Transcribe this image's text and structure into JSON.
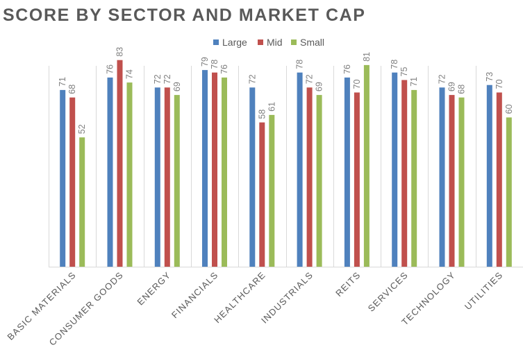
{
  "chart_data": {
    "type": "bar",
    "title": "SCORE BY SECTOR AND MARKET CAP",
    "categories": [
      "BASIC MATERIALS",
      "CONSUMER GOODS",
      "ENERGY",
      "FINANCIALS",
      "HEALTHCARE",
      "INDUSTRIALS",
      "REITS",
      "SERVICES",
      "TECHNOLOGY",
      "UTILITIES"
    ],
    "series": [
      {
        "name": "Large",
        "color": "#4f81bd",
        "values": [
          71,
          76,
          72,
          79,
          72,
          78,
          76,
          78,
          72,
          73
        ]
      },
      {
        "name": "Mid",
        "color": "#c0504d",
        "values": [
          68,
          83,
          72,
          78,
          58,
          72,
          70,
          75,
          69,
          70
        ]
      },
      {
        "name": "Small",
        "color": "#9bbb59",
        "values": [
          52,
          74,
          69,
          76,
          61,
          69,
          81,
          71,
          68,
          60
        ]
      }
    ],
    "xlabel": "",
    "ylabel": "",
    "ylim": [
      0,
      90
    ],
    "grid": "vertical separators between categories",
    "legend": "top-center",
    "data_labels": true,
    "axis_color": "#d9d9d9"
  }
}
